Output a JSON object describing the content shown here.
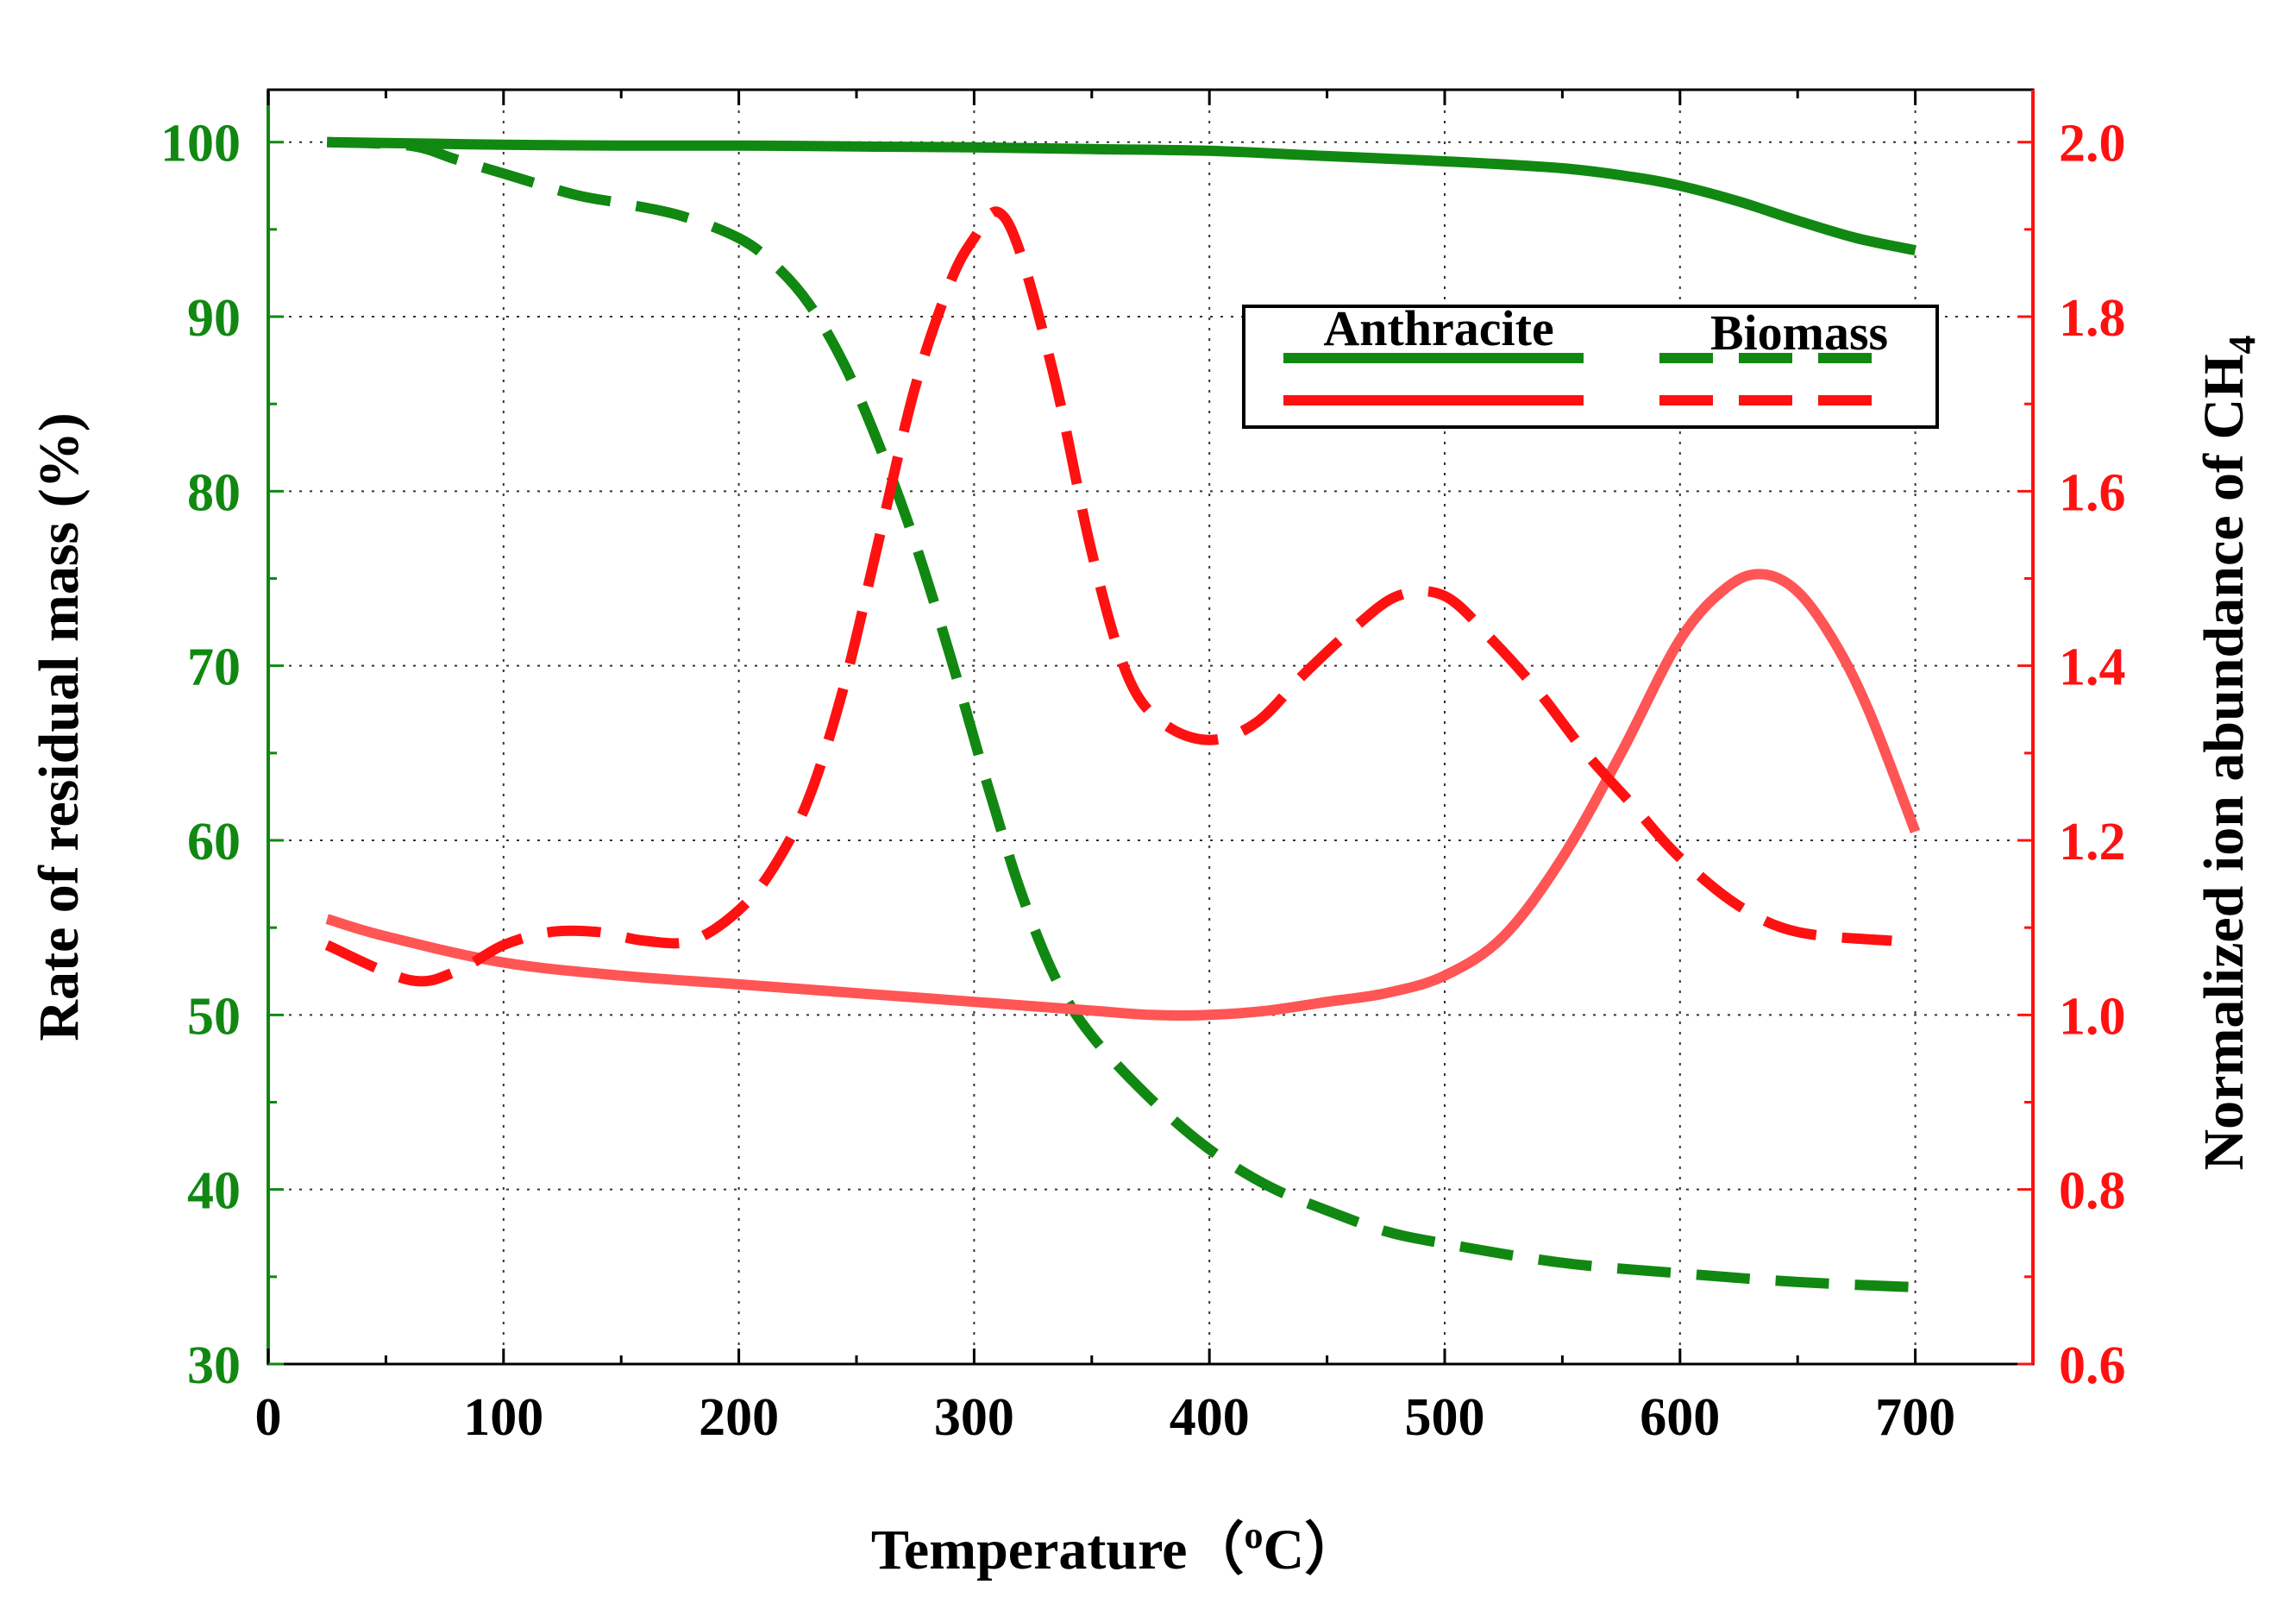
{
  "chart_data": {
    "type": "line",
    "xlabel": "Temperature（",
    "xlabel_sup": "o",
    "xlabel_end": "C）",
    "ylabel_left": "Rate of residual mass (%)",
    "ylabel_right": "Normalized ion abundance of CH",
    "ylabel_right_sub": "4",
    "xlim": [
      0,
      750
    ],
    "ylim_left": [
      30,
      103
    ],
    "ylim_right": [
      0.6,
      2.06
    ],
    "x_ticks": [
      "0",
      "100",
      "200",
      "300",
      "400",
      "500",
      "600",
      "700"
    ],
    "y_left_ticks": [
      "30",
      "40",
      "50",
      "60",
      "70",
      "80",
      "90",
      "100"
    ],
    "y_right_ticks": [
      "0.6",
      "0.8",
      "1.0",
      "1.2",
      "1.4",
      "1.6",
      "1.8",
      "2.0"
    ],
    "grid": true,
    "legend": {
      "position": "top-right",
      "labels": [
        "Anthracite",
        "Biomass"
      ]
    },
    "colors": {
      "mass": "#118811",
      "methane_anthracite": "#ff5555",
      "methane_biomass": "#ff1111",
      "left_axis": "#118811",
      "right_axis": "#ff1111"
    },
    "series": [
      {
        "name": "Anthracite mass",
        "axis": "left",
        "style": "solid",
        "color": "#118811",
        "x": [
          25,
          50,
          100,
          150,
          200,
          250,
          300,
          350,
          400,
          450,
          500,
          550,
          580,
          600,
          625,
          650,
          675,
          700
        ],
        "y": [
          100,
          99.95,
          99.85,
          99.8,
          99.8,
          99.75,
          99.7,
          99.6,
          99.5,
          99.2,
          98.9,
          98.5,
          98.0,
          97.5,
          96.6,
          95.5,
          94.5,
          93.8
        ]
      },
      {
        "name": "Biomass mass",
        "axis": "left",
        "style": "dashed",
        "color": "#118811",
        "x": [
          25,
          60,
          80,
          100,
          130,
          150,
          175,
          200,
          215,
          230,
          245,
          260,
          275,
          290,
          305,
          320,
          335,
          350,
          375,
          400,
          425,
          450,
          475,
          500,
          550,
          600,
          650,
          700
        ],
        "y": [
          100,
          99.8,
          99.0,
          98.2,
          97.0,
          96.5,
          95.8,
          94.5,
          93.0,
          90.7,
          87.2,
          82.5,
          77.0,
          70.5,
          63.5,
          57.0,
          52.0,
          48.8,
          45.2,
          42.3,
          40.2,
          38.8,
          37.6,
          36.9,
          35.8,
          35.2,
          34.7,
          34.4
        ]
      },
      {
        "name": "Anthracite CH4",
        "axis": "right",
        "style": "solid",
        "color": "#ff5555",
        "x": [
          25,
          50,
          100,
          150,
          200,
          250,
          300,
          350,
          375,
          400,
          425,
          450,
          475,
          500,
          525,
          550,
          575,
          600,
          620,
          635,
          650,
          665,
          680,
          700
        ],
        "y": [
          1.11,
          1.09,
          1.06,
          1.045,
          1.035,
          1.025,
          1.015,
          1.005,
          1.0,
          1.0,
          1.005,
          1.015,
          1.025,
          1.045,
          1.09,
          1.18,
          1.3,
          1.43,
          1.49,
          1.505,
          1.485,
          1.43,
          1.35,
          1.21
        ]
      },
      {
        "name": "Biomass CH4",
        "axis": "right",
        "style": "dashed",
        "color": "#ff1111",
        "x": [
          25,
          60,
          80,
          100,
          120,
          140,
          160,
          180,
          200,
          215,
          230,
          245,
          260,
          275,
          290,
          300,
          310,
          320,
          335,
          350,
          365,
          380,
          400,
          420,
          440,
          460,
          480,
          500,
          520,
          540,
          560,
          580,
          600,
          625,
          650,
          690
        ],
        "y": [
          1.08,
          1.04,
          1.05,
          1.08,
          1.095,
          1.095,
          1.085,
          1.085,
          1.12,
          1.17,
          1.25,
          1.38,
          1.55,
          1.72,
          1.84,
          1.89,
          1.92,
          1.87,
          1.72,
          1.53,
          1.39,
          1.335,
          1.315,
          1.335,
          1.39,
          1.44,
          1.48,
          1.48,
          1.43,
          1.37,
          1.3,
          1.24,
          1.18,
          1.125,
          1.095,
          1.085
        ]
      }
    ]
  }
}
